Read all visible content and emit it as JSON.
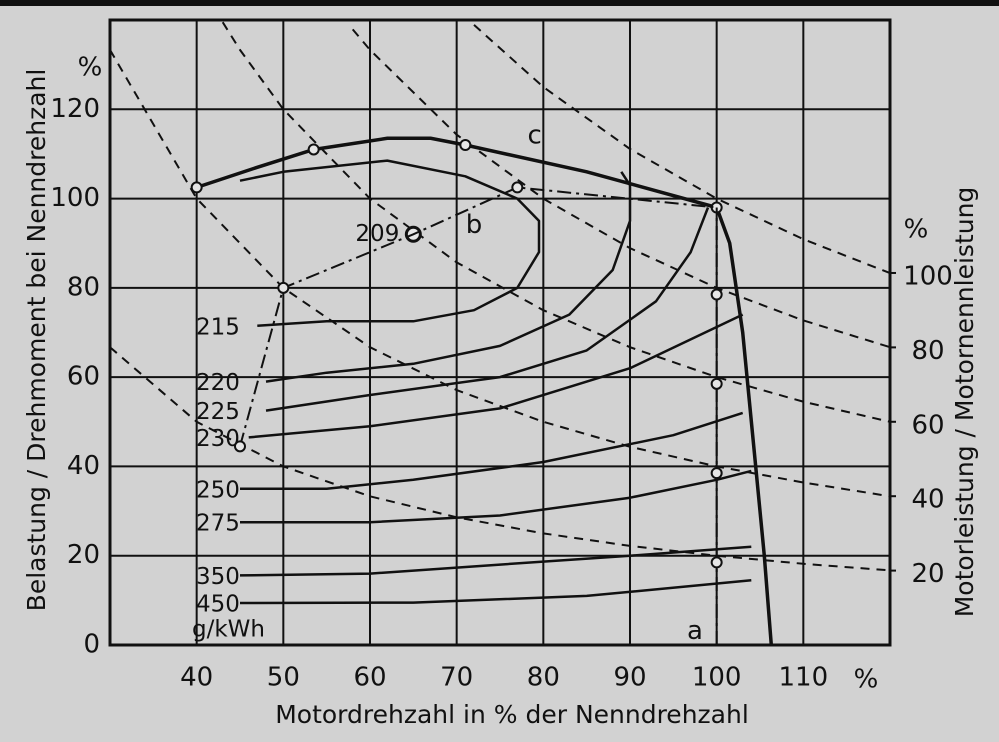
{
  "chart_data": {
    "type": "engine-map",
    "y_title": "Belastung / Drehmoment bei Nenndrehzahl",
    "x_title": "Motordrehzahl in % der Nenndrehzahl",
    "y2_title": "Motorleistung / Motornennleistung",
    "y_unit": "%",
    "x_unit": "%",
    "y2_unit": "%",
    "consumption_unit": "g/kWh",
    "xlim": [
      30,
      120
    ],
    "xticks": [
      40,
      50,
      60,
      70,
      80,
      90,
      100,
      110
    ],
    "ylim": [
      0,
      140
    ],
    "yticks": [
      0,
      20,
      40,
      60,
      80,
      100,
      120
    ],
    "y2lim": [
      0,
      168
    ],
    "y2ticks": [
      20,
      40,
      60,
      80,
      100
    ],
    "grid": true,
    "contours": [
      {
        "label": "209",
        "x": [
          65
        ],
        "values": [
          92
        ]
      },
      {
        "label": "215",
        "x": [
          47,
          55,
          65,
          72,
          77,
          79.5,
          79.5,
          77,
          71,
          62,
          50,
          45
        ],
        "values": [
          71.5,
          72.5,
          72.5,
          75,
          80,
          88,
          95,
          100,
          105,
          108.5,
          106,
          104
        ]
      },
      {
        "label": "220",
        "x": [
          48,
          55,
          65,
          75,
          83,
          88,
          90,
          90,
          89
        ],
        "values": [
          59,
          61,
          63,
          67,
          74,
          84,
          95,
          103,
          106
        ]
      },
      {
        "label": "225",
        "x": [
          48,
          60,
          75,
          85,
          93,
          97,
          99
        ],
        "values": [
          52.5,
          56,
          60,
          66,
          77,
          88,
          98
        ]
      },
      {
        "label": "230",
        "x": [
          46,
          60,
          75,
          90,
          103
        ],
        "values": [
          46.5,
          49,
          53,
          62,
          74
        ]
      },
      {
        "label": "250",
        "x": [
          45,
          55,
          65,
          80,
          95,
          103
        ],
        "values": [
          35,
          35,
          37,
          41,
          47,
          52
        ]
      },
      {
        "label": "275",
        "x": [
          45,
          60,
          75,
          90,
          100,
          104
        ],
        "values": [
          27.5,
          27.5,
          29,
          33,
          37,
          39
        ]
      },
      {
        "label": "350",
        "x": [
          45,
          60,
          75,
          90,
          104
        ],
        "values": [
          15.6,
          16,
          18,
          20,
          22
        ]
      },
      {
        "label": "450",
        "x": [
          45,
          65,
          85,
          104
        ],
        "values": [
          9.4,
          9.5,
          11,
          14.5
        ]
      }
    ],
    "lines": [
      {
        "label": "c",
        "style": "solid",
        "x": [
          40,
          47,
          53.5,
          62,
          67,
          71,
          85,
          100,
          101.5,
          103,
          104.5,
          105.5,
          106.3
        ],
        "values": [
          102.5,
          107,
          111,
          113.5,
          113.5,
          112,
          106,
          98,
          90,
          70,
          40,
          20,
          0
        ],
        "marker_x": [
          40,
          53.5,
          71,
          100
        ],
        "marker_values": [
          102.5,
          111,
          112,
          98
        ]
      },
      {
        "label": "b",
        "style": "dashdot",
        "x": [
          45,
          50,
          65,
          77,
          100
        ],
        "values": [
          44.5,
          80,
          92,
          102.5,
          98
        ],
        "marker_x": [
          45,
          50,
          77
        ],
        "marker_values": [
          44.5,
          80,
          102.5
        ]
      },
      {
        "label": "a",
        "style": "dashdot",
        "x": [
          100,
          100
        ],
        "values": [
          0,
          98
        ],
        "marker_x": [
          100,
          100,
          100,
          100
        ],
        "marker_values": [
          78.5,
          58.5,
          38.5,
          18.5
        ]
      }
    ],
    "power_curves": [
      {
        "x": [
          30,
          40,
          50,
          60,
          70,
          80,
          90,
          100,
          110,
          120
        ],
        "values": [
          66.7,
          50,
          40,
          33.3,
          28.6,
          25,
          22.2,
          20,
          18.2,
          16.7
        ]
      },
      {
        "x": [
          30,
          40,
          50,
          60,
          70,
          80,
          90,
          100,
          110,
          120
        ],
        "values": [
          133.3,
          100,
          80,
          66.7,
          57.1,
          50,
          44.4,
          40,
          36.4,
          33.3
        ]
      },
      {
        "x": [
          43,
          45,
          50,
          60,
          70,
          80,
          90,
          100,
          110,
          120
        ],
        "values": [
          139.5,
          133.3,
          120,
          100,
          85.7,
          75,
          66.7,
          60,
          54.5,
          50
        ]
      },
      {
        "x": [
          58,
          60,
          70,
          80,
          90,
          100,
          110,
          120
        ],
        "values": [
          137.9,
          133.3,
          114.3,
          100,
          88.9,
          80,
          72.7,
          66.7
        ]
      },
      {
        "x": [
          72,
          80,
          90,
          100,
          110,
          120
        ],
        "values": [
          138.9,
          125,
          111.1,
          100,
          90.9,
          83.3
        ]
      }
    ]
  }
}
